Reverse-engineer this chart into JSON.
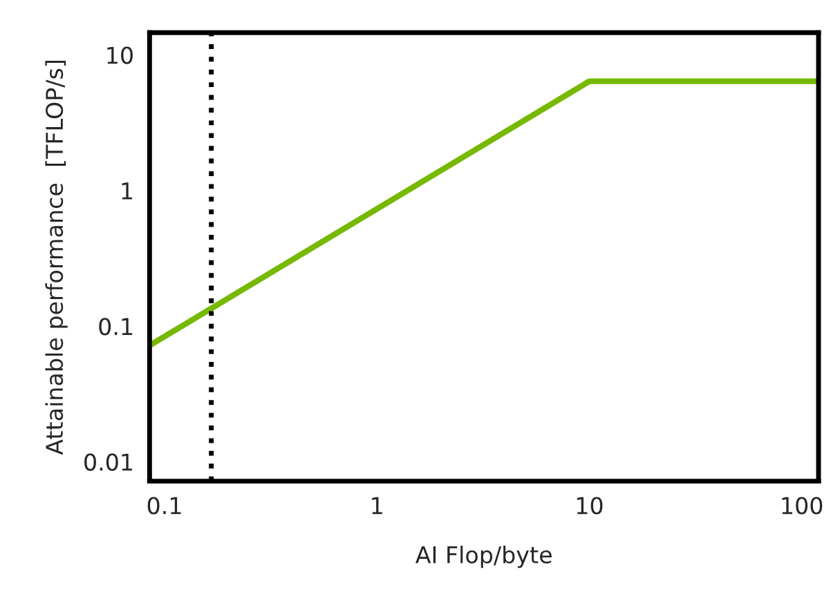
{
  "chart_data": {
    "type": "line",
    "xlabel": "AI Flop/byte",
    "ylabel": "Attainable performance  [TFLOP/s]",
    "log": "xy",
    "xlim": [
      0.085,
      120
    ],
    "ylim": [
      0.0072,
      14.6
    ],
    "xticks": [
      0.1,
      1,
      10,
      100
    ],
    "yticks": [
      0.01,
      0.1,
      1,
      10
    ],
    "series": [
      {
        "color": "#76b900",
        "x": [
          0.085,
          10,
          120
        ],
        "values": [
          0.072,
          6.4,
          6.4
        ]
      }
    ],
    "ref_lines": [
      {
        "axis": "x",
        "value": 0.166,
        "color": "#000000",
        "line_style": "dotted"
      }
    ],
    "grid": false,
    "legend": false
  }
}
